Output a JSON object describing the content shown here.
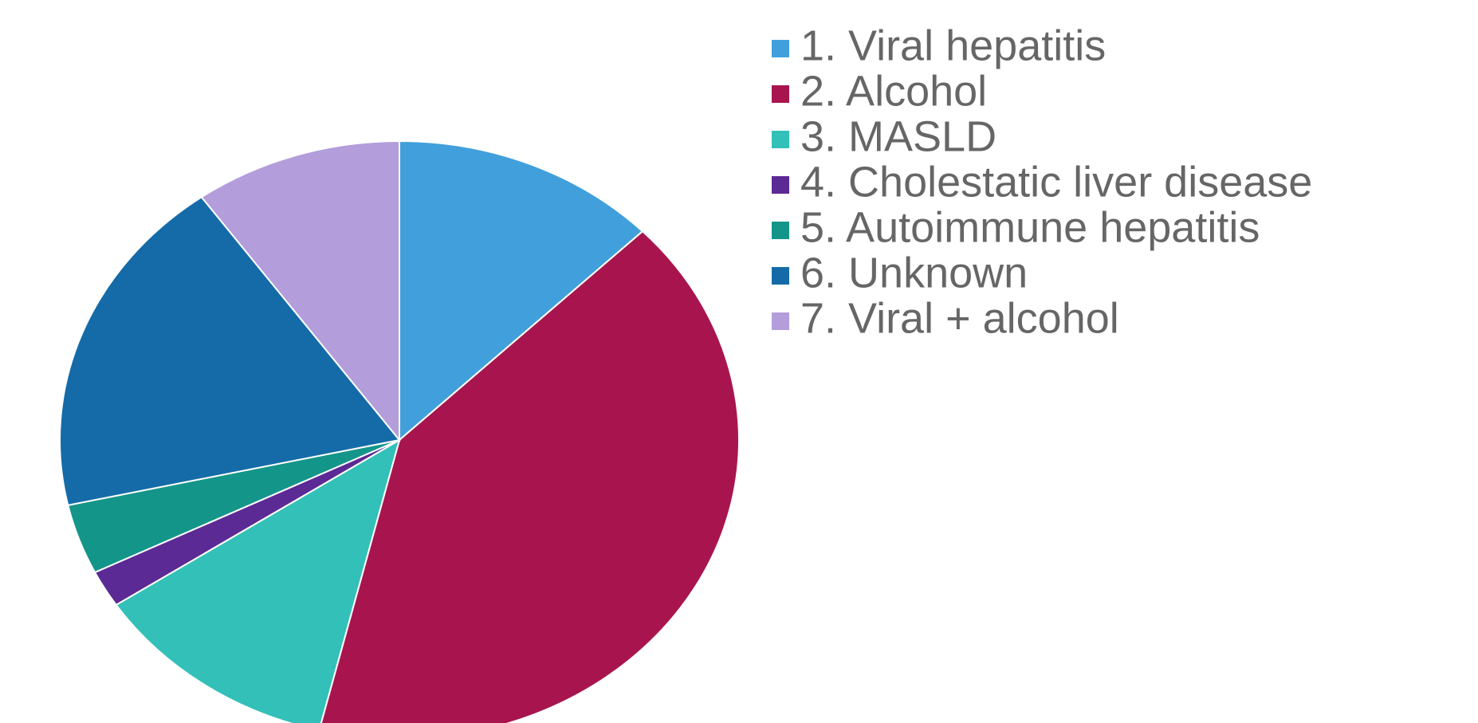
{
  "chart_data": {
    "type": "pie",
    "categories": [
      "1. Viral hepatitis",
      "2. Alcohol",
      "3. MASLD",
      "4. Cholestatic liver disease",
      "5. Autoimmune hepatitis",
      "6. Unknown",
      "7. Viral + alcohol"
    ],
    "values": [
      12.7,
      41.1,
      11.9,
      2.0,
      3.8,
      18.6,
      9.9
    ],
    "colors": [
      "#41a0db",
      "#a8154e",
      "#33c0b8",
      "#5b2a94",
      "#14958a",
      "#146ba8",
      "#b39ddb"
    ],
    "legend": "right"
  }
}
